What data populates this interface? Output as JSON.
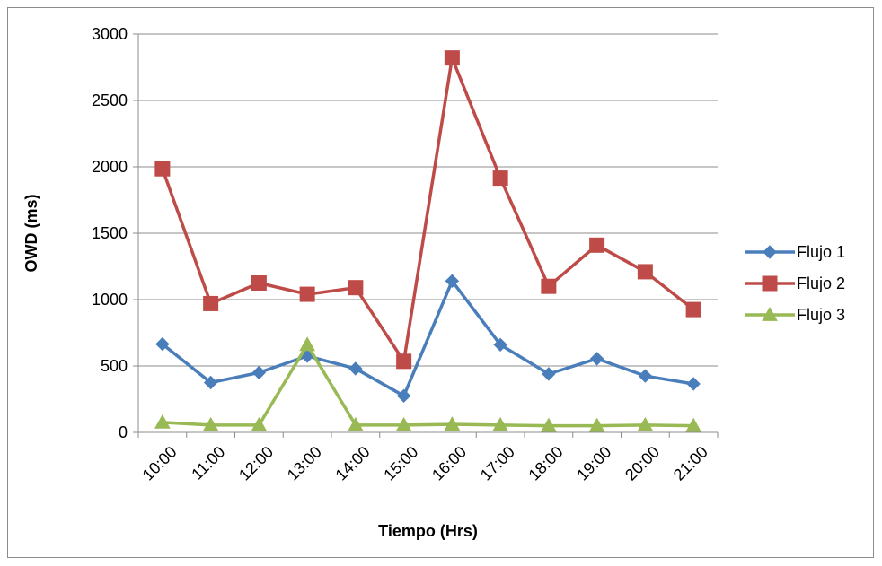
{
  "chart_data": {
    "type": "line",
    "title": "",
    "xlabel": "Tiempo (Hrs)",
    "ylabel": "OWD (ms)",
    "ylim": [
      0,
      3000
    ],
    "yticks": [
      0,
      500,
      1000,
      1500,
      2000,
      2500,
      3000
    ],
    "grid": true,
    "legend_position": "right",
    "categories": [
      "10:00",
      "11:00",
      "12:00",
      "13:00",
      "14:00",
      "15:00",
      "16:00",
      "17:00",
      "18:00",
      "19:00",
      "20:00",
      "21:00"
    ],
    "series": [
      {
        "name": "Flujo 1",
        "color": "#4a7ebb",
        "marker": "diamond",
        "values": [
          665,
          375,
          450,
          575,
          480,
          275,
          1140,
          660,
          440,
          555,
          425,
          365
        ]
      },
      {
        "name": "Flujo 2",
        "color": "#be4b48",
        "marker": "square",
        "values": [
          1985,
          970,
          1125,
          1040,
          1090,
          535,
          2820,
          1915,
          1100,
          1410,
          1210,
          925
        ]
      },
      {
        "name": "Flujo 3",
        "color": "#98b954",
        "marker": "triangle",
        "values": [
          75,
          55,
          55,
          660,
          55,
          55,
          60,
          55,
          50,
          50,
          55,
          50
        ]
      }
    ]
  }
}
